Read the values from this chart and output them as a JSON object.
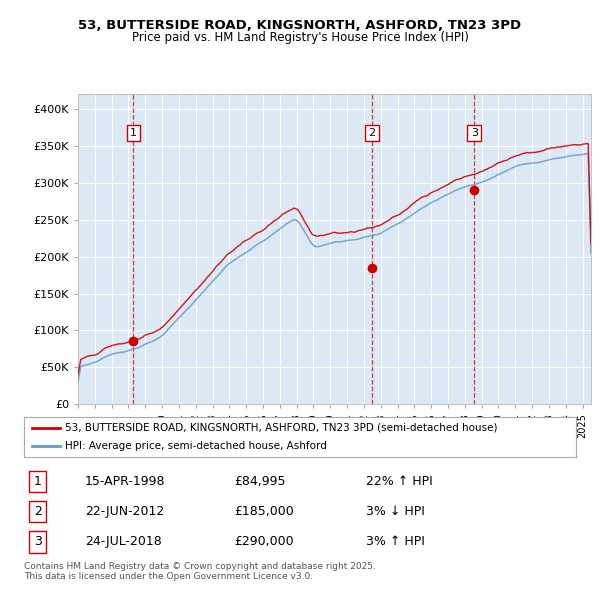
{
  "title_line1": "53, BUTTERSIDE ROAD, KINGSNORTH, ASHFORD, TN23 3PD",
  "title_line2": "Price paid vs. HM Land Registry's House Price Index (HPI)",
  "background_color": "#dce9f5",
  "fig_bg_color": "#ffffff",
  "ylim": [
    0,
    420000
  ],
  "yticks": [
    0,
    50000,
    100000,
    150000,
    200000,
    250000,
    300000,
    350000,
    400000
  ],
  "ytick_labels": [
    "£0",
    "£50K",
    "£100K",
    "£150K",
    "£200K",
    "£250K",
    "£300K",
    "£350K",
    "£400K"
  ],
  "xlim_start": 1995.0,
  "xlim_end": 2025.5,
  "sale_dates": [
    1998.29,
    2012.47,
    2018.56
  ],
  "sale_prices": [
    84995,
    185000,
    290000
  ],
  "sale_labels": [
    "1",
    "2",
    "3"
  ],
  "dashed_line_color": "#cc0000",
  "sale_dot_color": "#cc0000",
  "hpi_line_color": "#6699cc",
  "price_line_color": "#cc0000",
  "legend_label_price": "53, BUTTERSIDE ROAD, KINGSNORTH, ASHFORD, TN23 3PD (semi-detached house)",
  "legend_label_hpi": "HPI: Average price, semi-detached house, Ashford",
  "table_rows": [
    {
      "num": "1",
      "date": "15-APR-1998",
      "price": "£84,995",
      "change": "22% ↑ HPI"
    },
    {
      "num": "2",
      "date": "22-JUN-2012",
      "price": "£185,000",
      "change": "3% ↓ HPI"
    },
    {
      "num": "3",
      "date": "24-JUL-2018",
      "price": "£290,000",
      "change": "3% ↑ HPI"
    }
  ],
  "footer": "Contains HM Land Registry data © Crown copyright and database right 2025.\nThis data is licensed under the Open Government Licence v3.0."
}
